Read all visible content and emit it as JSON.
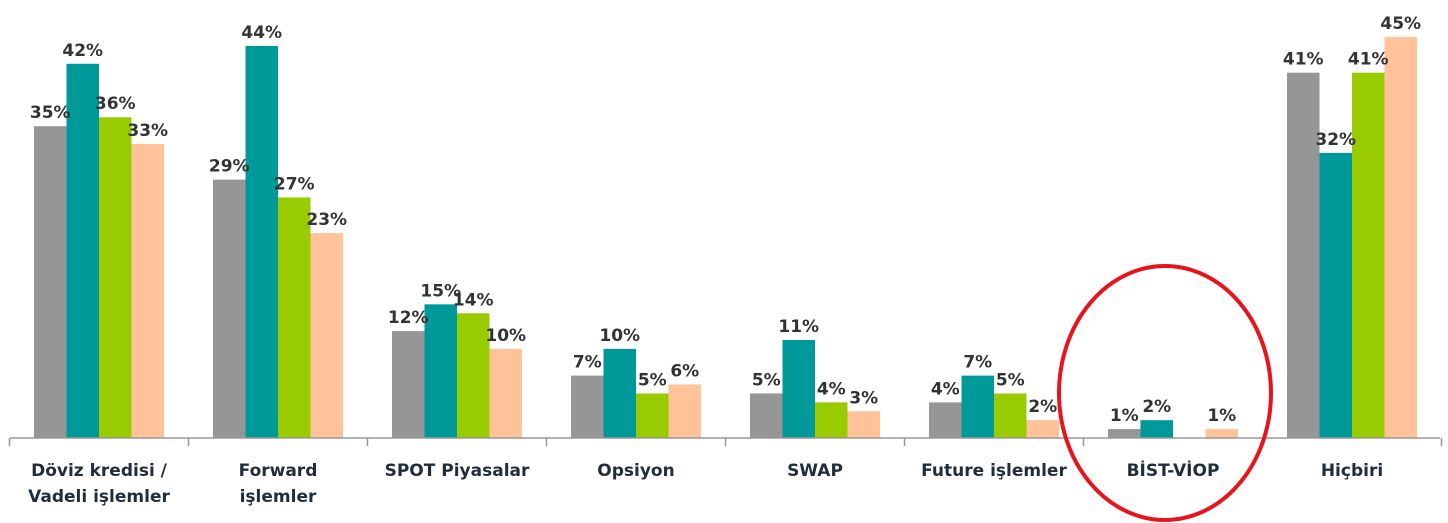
{
  "chart_data": {
    "type": "bar",
    "categories": [
      [
        "Döviz kredisi /",
        "Vadeli işlemler"
      ],
      [
        "Forward",
        "işlemler"
      ],
      [
        "SPOT Piyasalar"
      ],
      [
        "Opsiyon"
      ],
      [
        "SWAP"
      ],
      [
        "Future işlemler"
      ],
      [
        "BİST-VİOP"
      ],
      [
        "Hiçbiri"
      ]
    ],
    "series": [
      {
        "color": "#969696",
        "values": [
          35,
          29,
          12,
          7,
          5,
          4,
          1,
          41
        ],
        "value_labels": [
          "35%",
          "29%",
          "12%",
          "7%",
          "5%",
          "4%",
          "1%",
          "41%"
        ]
      },
      {
        "color": "#009999",
        "values": [
          42,
          44,
          15,
          10,
          11,
          7,
          2,
          32
        ],
        "value_labels": [
          "42%",
          "44%",
          "15%",
          "10%",
          "11%",
          "7%",
          "2%",
          "32%"
        ]
      },
      {
        "color": "#99cc00",
        "values": [
          36,
          27,
          14,
          5,
          4,
          5,
          null,
          41
        ],
        "value_labels": [
          "36%",
          "27%",
          "14%",
          "5%",
          "4%",
          "5%",
          null,
          "41%"
        ]
      },
      {
        "color": "#ffc299",
        "values": [
          33,
          23,
          10,
          6,
          3,
          2,
          1,
          45
        ],
        "value_labels": [
          "33%",
          "23%",
          "10%",
          "6%",
          "3%",
          "2%",
          "1%",
          "45%"
        ]
      }
    ]
  }
}
